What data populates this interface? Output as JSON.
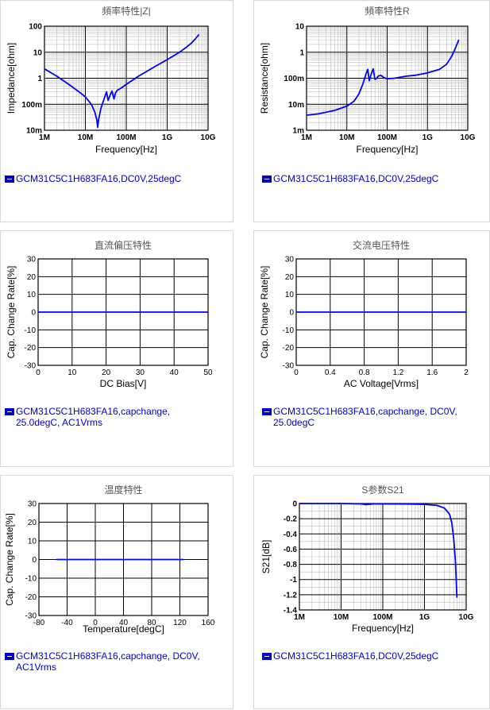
{
  "chart_data": [
    {
      "type": "line",
      "title": "頻率特性|Z|",
      "xlabel": "Frequency[Hz]",
      "ylabel": "Impedance[ohm]",
      "xscale": "log",
      "yscale": "log",
      "xlim": [
        1000000,
        10000000000
      ],
      "ylim": [
        0.01,
        100
      ],
      "xticks": [
        {
          "v": 1000000,
          "label": "1M"
        },
        {
          "v": 10000000,
          "label": "10M"
        },
        {
          "v": 100000000,
          "label": "100M"
        },
        {
          "v": 1000000000,
          "label": "1G"
        },
        {
          "v": 10000000000,
          "label": "10G"
        }
      ],
      "yticks": [
        {
          "v": 0.01,
          "label": "10m"
        },
        {
          "v": 0.1,
          "label": "100m"
        },
        {
          "v": 1,
          "label": "1"
        },
        {
          "v": 10,
          "label": "10"
        },
        {
          "v": 100,
          "label": "100"
        }
      ],
      "grid": true,
      "color": "#0000ff",
      "legend": [
        "GCM31C5C1H683FA16,DC0V,25degC"
      ],
      "x": [
        1000000,
        2000000,
        4000000,
        7000000,
        10000000,
        14000000,
        17000000,
        19000000,
        20000000,
        21000000,
        24000000,
        30000000,
        33000000,
        36000000,
        40000000,
        45000000,
        50000000,
        55000000,
        60000000,
        80000000,
        100000000,
        200000000,
        500000000,
        1000000000,
        2000000000,
        3000000000,
        4000000000,
        5000000000,
        6000000000
      ],
      "y": [
        2.3,
        1.2,
        0.57,
        0.3,
        0.19,
        0.1,
        0.05,
        0.025,
        0.013,
        0.025,
        0.07,
        0.2,
        0.3,
        0.14,
        0.22,
        0.32,
        0.16,
        0.28,
        0.34,
        0.45,
        0.58,
        1.2,
        2.8,
        5.2,
        10,
        16,
        23,
        34,
        48
      ]
    },
    {
      "type": "line",
      "title": "頻率特性R",
      "xlabel": "Frequency[Hz]",
      "ylabel": "Resistance[ohm]",
      "xscale": "log",
      "yscale": "log",
      "xlim": [
        1000000,
        10000000000
      ],
      "ylim": [
        0.001,
        10
      ],
      "xticks": [
        {
          "v": 1000000,
          "label": "1M"
        },
        {
          "v": 10000000,
          "label": "10M"
        },
        {
          "v": 100000000,
          "label": "100M"
        },
        {
          "v": 1000000000,
          "label": "1G"
        },
        {
          "v": 10000000000,
          "label": "10G"
        }
      ],
      "yticks": [
        {
          "v": 0.001,
          "label": "1m"
        },
        {
          "v": 0.01,
          "label": "10m"
        },
        {
          "v": 0.1,
          "label": "100m"
        },
        {
          "v": 1,
          "label": "1"
        },
        {
          "v": 10,
          "label": "10"
        }
      ],
      "grid": true,
      "color": "#0000ff",
      "legend": [
        "GCM31C5C1H683FA16,DC0V,25degC"
      ],
      "x": [
        1000000,
        2000000,
        5000000,
        10000000,
        15000000,
        20000000,
        25000000,
        30000000,
        33000000,
        36000000,
        40000000,
        45000000,
        50000000,
        55000000,
        60000000,
        70000000,
        80000000,
        90000000,
        100000000,
        150000000,
        300000000,
        500000000,
        1000000000,
        2000000000,
        3000000000,
        4000000000,
        5000000000,
        6000000000
      ],
      "y": [
        0.0038,
        0.0043,
        0.0058,
        0.0085,
        0.013,
        0.025,
        0.06,
        0.15,
        0.22,
        0.08,
        0.14,
        0.23,
        0.09,
        0.1,
        0.12,
        0.13,
        0.11,
        0.1,
        0.095,
        0.1,
        0.12,
        0.13,
        0.16,
        0.22,
        0.35,
        0.7,
        1.5,
        3
      ]
    },
    {
      "type": "line",
      "title": "直流偏压特性",
      "xlabel": "DC Bias[V]",
      "ylabel": "Cap. Change Rate[%]",
      "xlim": [
        0,
        50
      ],
      "ylim": [
        -30,
        30
      ],
      "xticks": [
        {
          "v": 0,
          "label": "0"
        },
        {
          "v": 10,
          "label": "10"
        },
        {
          "v": 20,
          "label": "20"
        },
        {
          "v": 30,
          "label": "30"
        },
        {
          "v": 40,
          "label": "40"
        },
        {
          "v": 50,
          "label": "50"
        }
      ],
      "yticks": [
        {
          "v": 30,
          "label": "30"
        },
        {
          "v": 20,
          "label": "20"
        },
        {
          "v": 10,
          "label": "10"
        },
        {
          "v": 0,
          "label": "0"
        },
        {
          "v": -10,
          "label": "-10"
        },
        {
          "v": -20,
          "label": "-20"
        },
        {
          "v": -30,
          "label": "-30"
        }
      ],
      "grid": true,
      "color": "#0000ff",
      "legend": [
        "GCM31C5C1H683FA16,capchange,",
        "25.0degC, AC1Vrms"
      ],
      "x": [
        0,
        10,
        20,
        30,
        40,
        50
      ],
      "y": [
        0,
        0,
        0,
        0,
        0,
        0
      ]
    },
    {
      "type": "line",
      "title": "交流电压特性",
      "xlabel": "AC Voltage[Vrms]",
      "ylabel": "Cap. Change Rate[%]",
      "xlim": [
        0,
        2
      ],
      "ylim": [
        -30,
        30
      ],
      "xticks": [
        {
          "v": 0,
          "label": "0"
        },
        {
          "v": 0.4,
          "label": "0.4"
        },
        {
          "v": 0.8,
          "label": "0.8"
        },
        {
          "v": 1.2,
          "label": "1.2"
        },
        {
          "v": 1.6,
          "label": "1.6"
        },
        {
          "v": 2,
          "label": "2"
        }
      ],
      "yticks": [
        {
          "v": 30,
          "label": "30"
        },
        {
          "v": 20,
          "label": "20"
        },
        {
          "v": 10,
          "label": "10"
        },
        {
          "v": 0,
          "label": "0"
        },
        {
          "v": -10,
          "label": "-10"
        },
        {
          "v": -20,
          "label": "-20"
        },
        {
          "v": -30,
          "label": "-30"
        }
      ],
      "grid": true,
      "color": "#0000ff",
      "legend": [
        "GCM31C5C1H683FA16,capchange, DC0V,",
        "25.0degC"
      ],
      "x": [
        0.01,
        0.5,
        1,
        1.5,
        2
      ],
      "y": [
        0,
        0,
        0,
        0,
        0
      ]
    },
    {
      "type": "line",
      "title": "温度特性",
      "xlabel": "Temperature[degC]",
      "ylabel": "Cap. Change Rate[%]",
      "xlim": [
        -80,
        160
      ],
      "ylim": [
        -30,
        30
      ],
      "xticks": [
        {
          "v": -80,
          "label": "-80"
        },
        {
          "v": -40,
          "label": "-40"
        },
        {
          "v": 0,
          "label": "0"
        },
        {
          "v": 40,
          "label": "40"
        },
        {
          "v": 80,
          "label": "80"
        },
        {
          "v": 120,
          "label": "120"
        },
        {
          "v": 160,
          "label": "160"
        }
      ],
      "yticks": [
        {
          "v": 30,
          "label": "30"
        },
        {
          "v": 20,
          "label": "20"
        },
        {
          "v": 10,
          "label": "10"
        },
        {
          "v": 0,
          "label": "0"
        },
        {
          "v": -10,
          "label": "-10"
        },
        {
          "v": -20,
          "label": "-20"
        },
        {
          "v": -30,
          "label": "-30"
        }
      ],
      "grid": true,
      "color": "#0000ff",
      "legend": [
        "GCM31C5C1H683FA16,capchange, DC0V,",
        "AC1Vrms"
      ],
      "x": [
        -55,
        0,
        25,
        50,
        85,
        125
      ],
      "y": [
        0,
        0,
        0,
        0,
        0,
        0
      ]
    },
    {
      "type": "line",
      "title": "S参数S21",
      "xlabel": "Frequency[Hz]",
      "ylabel": "S21[dB]",
      "xscale": "log",
      "xlim": [
        1000000,
        10000000000
      ],
      "ylim": [
        -1.4,
        0
      ],
      "xticks": [
        {
          "v": 1000000,
          "label": "1M"
        },
        {
          "v": 10000000,
          "label": "10M"
        },
        {
          "v": 100000000,
          "label": "100M"
        },
        {
          "v": 1000000000,
          "label": "1G"
        },
        {
          "v": 10000000000,
          "label": "10G"
        }
      ],
      "yticks": [
        {
          "v": 0,
          "label": "0"
        },
        {
          "v": -0.2,
          "label": "-0.2"
        },
        {
          "v": -0.4,
          "label": "-0.4"
        },
        {
          "v": -0.6,
          "label": "-0.6"
        },
        {
          "v": -0.8,
          "label": "-0.8"
        },
        {
          "v": -1,
          "label": "-1"
        },
        {
          "v": -1.2,
          "label": "-1.2"
        },
        {
          "v": -1.4,
          "label": "-1.4"
        }
      ],
      "grid": true,
      "color": "#0000ff",
      "legend": [
        "GCM31C5C1H683FA16,DC0V,25degC"
      ],
      "x": [
        1000000,
        10000000,
        30000000,
        40000000,
        60000000,
        100000000,
        300000000,
        600000000,
        1000000000,
        2000000000,
        3000000000,
        4000000000,
        4500000000,
        5000000000,
        5500000000,
        6000000000
      ],
      "y": [
        0,
        0,
        -0.005,
        -0.015,
        -0.005,
        -0.005,
        -0.006,
        -0.008,
        -0.012,
        -0.025,
        -0.06,
        -0.14,
        -0.25,
        -0.45,
        -0.75,
        -1.24
      ]
    }
  ]
}
